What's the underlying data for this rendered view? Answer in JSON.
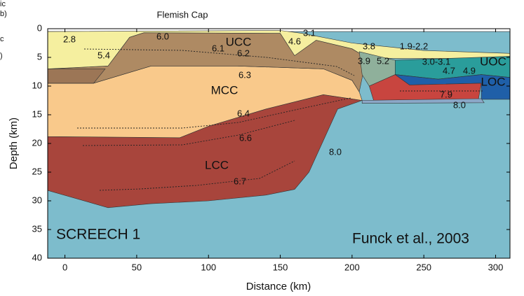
{
  "chart_data": {
    "type": "section",
    "title": "Flemish Cap",
    "x_label": "Distance (km)",
    "y_label": "Depth (km)",
    "xlim": [
      -12,
      310
    ],
    "ylim": [
      0,
      40
    ],
    "y_inverted": true,
    "xticks": [
      0,
      50,
      100,
      150,
      200,
      250,
      300
    ],
    "yticks": [
      0,
      5,
      10,
      15,
      20,
      25,
      30,
      35,
      40
    ],
    "layers": [
      {
        "color": "#7dbccc",
        "x": [
          -12,
          310,
          310,
          -12
        ],
        "depth": [
          0.5,
          0.5,
          40,
          40
        ]
      },
      {
        "color": "#a8453c",
        "x": [
          -12,
          80,
          100,
          140,
          180,
          207,
          190,
          170,
          160,
          140,
          100,
          60,
          30,
          -12
        ],
        "depth": [
          18.8,
          19,
          17,
          14,
          11.5,
          12.5,
          14,
          25,
          28,
          29,
          30,
          30.5,
          31.2,
          28.2
        ]
      },
      {
        "color": "#f9c98b",
        "x": [
          -12,
          20,
          60,
          120,
          180,
          200,
          205,
          207,
          180,
          140,
          100,
          80,
          -12
        ],
        "depth": [
          9.5,
          9.5,
          6.5,
          6.5,
          7,
          9,
          11,
          12.5,
          11.5,
          14,
          17,
          19,
          18.8
        ]
      },
      {
        "color": "#ae8a63",
        "x": [
          -12,
          30,
          45,
          55,
          150,
          160,
          175,
          200,
          210,
          205,
          200,
          180,
          120,
          60,
          20,
          -12
        ],
        "depth": [
          7,
          6.5,
          1.5,
          0.7,
          0.8,
          4.7,
          2,
          3.5,
          5,
          11,
          9,
          7,
          6.5,
          6.5,
          9.5,
          9.5
        ]
      },
      {
        "color": "#9c7656",
        "x": [
          -12,
          28,
          20,
          -12
        ],
        "depth": [
          7,
          7,
          9.5,
          9.5
        ]
      },
      {
        "color": "#f5ef9f",
        "x": [
          -12,
          150,
          165,
          200,
          250,
          310,
          310,
          230,
          210,
          200,
          175,
          160,
          150,
          55,
          45,
          30,
          -12
        ],
        "depth": [
          0.5,
          0.3,
          0.8,
          2.5,
          3.8,
          4.3,
          5.2,
          5.2,
          5,
          3.5,
          2,
          4.7,
          0.8,
          0.7,
          1.5,
          6.5,
          7
        ]
      },
      {
        "color": "#8fb09b",
        "x": [
          205,
          230,
          230,
          212,
          207
        ],
        "depth": [
          4,
          5.5,
          8,
          10,
          8
        ]
      },
      {
        "color": "#2a9d9b",
        "x": [
          230,
          310,
          310,
          290,
          260,
          230
        ],
        "depth": [
          5.5,
          4.8,
          8.5,
          8,
          8.8,
          8
        ]
      },
      {
        "color": "#1f5fa8",
        "x": [
          230,
          260,
          290,
          310,
          310,
          290,
          290,
          240,
          230
        ],
        "depth": [
          8,
          8.8,
          8,
          8.5,
          12.3,
          12.3,
          9.5,
          9.8,
          9
        ]
      },
      {
        "color": "#c8453f",
        "x": [
          212,
          230,
          240,
          290,
          288,
          250,
          215
        ],
        "depth": [
          10,
          8,
          9.8,
          9.5,
          12.3,
          12.5,
          12.5
        ]
      },
      {
        "color": "#8ba7c7",
        "x": [
          207,
          290,
          292,
          207
        ],
        "depth": [
          12.5,
          12.2,
          12.9,
          13
        ]
      }
    ],
    "annotations": [
      "2.8",
      "6.0",
      "UCC",
      "3.1",
      "4.6",
      "6.1",
      "6.2",
      "5.4",
      "6.3",
      "MCC",
      "6.4",
      "6.6",
      "LCC",
      "8.0",
      "6.7",
      "3.8",
      "1.9-2.2",
      "3.9",
      "5.2",
      "3.0-3.1",
      "UOC",
      "4.7",
      "4.9",
      "LOC",
      "7.9",
      "8.0",
      "SCREECH 1",
      "Funck et al., 2003"
    ],
    "edge_fragments": [
      "ic",
      "b)",
      "c",
      ")"
    ]
  }
}
